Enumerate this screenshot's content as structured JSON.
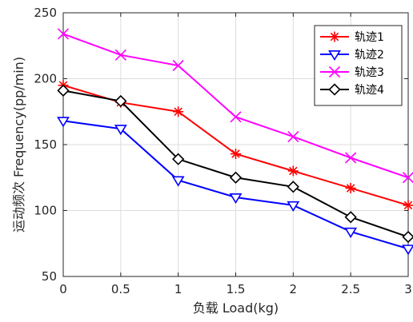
{
  "chart_data": {
    "type": "line",
    "xlabel": "负载 Load(kg)",
    "ylabel": "运动频次 Frequency(pp/min)",
    "x": [
      0,
      0.5,
      1,
      1.5,
      2,
      2.5,
      3
    ],
    "xlim": [
      0,
      3
    ],
    "ylim": [
      50,
      250
    ],
    "xticks": [
      "0",
      "0.5",
      "1",
      "1.5",
      "2",
      "2.5",
      "3"
    ],
    "yticks": [
      "50",
      "100",
      "150",
      "200",
      "250"
    ],
    "grid": true,
    "legend_position": "top-right",
    "series": [
      {
        "name": "轨迹1",
        "color": "#ff0000",
        "marker": "asterisk",
        "values": [
          195,
          182,
          175,
          143,
          130,
          117,
          104
        ]
      },
      {
        "name": "轨迹2",
        "color": "#0000ff",
        "marker": "triangle-down",
        "values": [
          168,
          162,
          123,
          110,
          104,
          84,
          71
        ]
      },
      {
        "name": "轨迹3",
        "color": "#ff00ff",
        "marker": "x",
        "values": [
          234,
          218,
          210,
          171,
          156,
          140,
          125
        ]
      },
      {
        "name": "轨迹4",
        "color": "#000000",
        "marker": "diamond",
        "values": [
          191,
          183,
          139,
          125,
          118,
          95,
          80
        ]
      }
    ]
  }
}
